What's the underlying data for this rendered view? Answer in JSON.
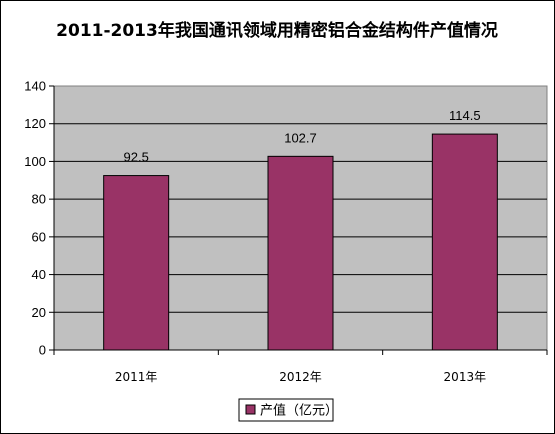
{
  "chart_data": {
    "type": "bar",
    "title": "2011-2013年我国通讯领域用精密铝合金结构件产值情况",
    "categories": [
      "2011年",
      "2012年",
      "2013年"
    ],
    "series": [
      {
        "name": "产值（亿元）",
        "values": [
          92.5,
          102.7,
          114.5
        ],
        "color": "#993366"
      }
    ],
    "data_labels": [
      "92.5",
      "102.7",
      "114.5"
    ],
    "ylim": [
      0,
      140
    ],
    "yticks": [
      0,
      20,
      40,
      60,
      80,
      100,
      120,
      140
    ],
    "xlabel": "",
    "ylabel": "",
    "grid": true,
    "legend_position": "bottom",
    "plot_background": "#c0c0c0"
  }
}
